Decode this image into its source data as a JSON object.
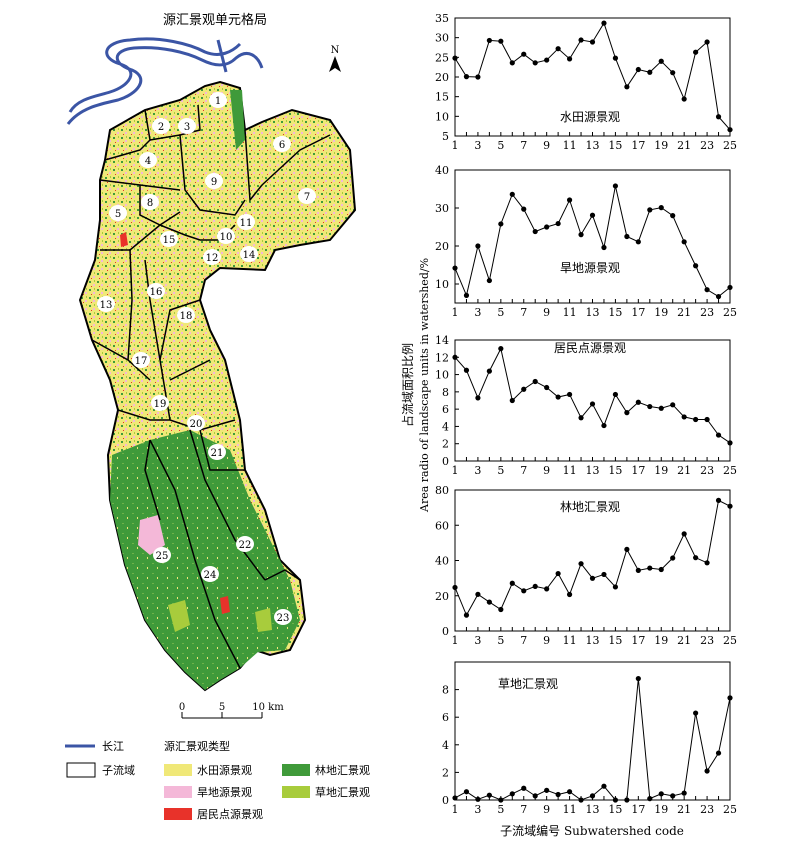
{
  "map": {
    "title": "源汇景观单元格局",
    "north": "N",
    "scale_labels": [
      "0",
      "5",
      "10 km"
    ],
    "subwatershed_ids": [
      "1",
      "2",
      "3",
      "4",
      "5",
      "6",
      "7",
      "8",
      "9",
      "10",
      "11",
      "12",
      "13",
      "14",
      "15",
      "16",
      "17",
      "18",
      "19",
      "20",
      "21",
      "22",
      "23",
      "24",
      "25"
    ]
  },
  "legend": {
    "river_label": "长江",
    "subwatershed_label": "子流域",
    "types_title": "源汇景观类型",
    "items": [
      {
        "label": "水田源景观",
        "color": "#f0e878"
      },
      {
        "label": "林地汇景观",
        "color": "#3f9a3a"
      },
      {
        "label": "旱地源景观",
        "color": "#f4b8d8"
      },
      {
        "label": "草地汇景观",
        "color": "#a8cc3c"
      },
      {
        "label": "居民点源景观",
        "color": "#e8322a"
      }
    ]
  },
  "colors": {
    "river": "#3b55a5",
    "forest": "#3f9a3a",
    "paddy": "#f0e878",
    "dry": "#f4b8d8",
    "grass": "#a8cc3c",
    "settlement": "#e8322a",
    "line": "#000000"
  },
  "chart_data": {
    "type": "line",
    "ylabel_cn": "占流域面积比例",
    "ylabel_en": "Area radio of landscape units in watershed/%",
    "xlabel": "子流域编号 Subwatershed code",
    "x": [
      1,
      2,
      3,
      4,
      5,
      6,
      7,
      8,
      9,
      10,
      11,
      12,
      13,
      14,
      15,
      16,
      17,
      18,
      19,
      20,
      21,
      22,
      23,
      24,
      25
    ],
    "x_ticks": [
      1,
      3,
      5,
      7,
      9,
      11,
      13,
      15,
      17,
      19,
      21,
      23,
      25
    ],
    "panels": [
      {
        "name": "水田源景观",
        "ylim": [
          5,
          35
        ],
        "yticks": [
          5,
          10,
          15,
          20,
          25,
          30,
          35
        ],
        "values": [
          24.8,
          20.1,
          20.0,
          29.3,
          29.1,
          23.6,
          25.8,
          23.6,
          24.3,
          27.2,
          24.6,
          29.4,
          28.9,
          33.7,
          24.8,
          17.5,
          21.9,
          21.2,
          24.0,
          21.1,
          14.4,
          26.3,
          28.9,
          9.9,
          6.6
        ]
      },
      {
        "name": "旱地源景观",
        "ylim": [
          5,
          40
        ],
        "yticks": [
          10,
          20,
          30,
          40
        ],
        "values": [
          14.2,
          7.0,
          20.0,
          10.9,
          25.8,
          33.6,
          29.7,
          23.8,
          25.0,
          25.9,
          32.1,
          23.0,
          28.1,
          19.6,
          35.8,
          22.5,
          21.1,
          29.5,
          30.1,
          28.0,
          21.1,
          14.8,
          8.5,
          6.7,
          9.1
        ]
      },
      {
        "name": "居民点源景观",
        "ylim": [
          0,
          14
        ],
        "yticks": [
          0,
          2,
          4,
          6,
          8,
          10,
          12,
          14
        ],
        "values": [
          12.0,
          10.5,
          7.3,
          10.4,
          13.0,
          7.0,
          8.3,
          9.2,
          8.5,
          7.4,
          7.7,
          5.0,
          6.6,
          4.1,
          7.7,
          5.6,
          6.8,
          6.3,
          6.1,
          6.5,
          5.1,
          4.8,
          4.8,
          3.0,
          2.1
        ]
      },
      {
        "name": "林地汇景观",
        "ylim": [
          0,
          80
        ],
        "yticks": [
          0,
          20,
          40,
          60,
          80
        ],
        "values": [
          24.7,
          9.0,
          20.8,
          16.4,
          12.2,
          27.1,
          22.8,
          25.3,
          23.9,
          32.6,
          20.7,
          38.2,
          29.9,
          32.1,
          25.0,
          46.3,
          34.4,
          35.7,
          34.9,
          41.4,
          55.1,
          41.6,
          38.7,
          74.1,
          70.8
        ]
      },
      {
        "name": "草地汇景观",
        "ylim": [
          0,
          10
        ],
        "yticks": [
          0,
          2,
          4,
          6,
          8
        ],
        "values": [
          0.15,
          0.6,
          0.05,
          0.35,
          0.0,
          0.45,
          0.85,
          0.3,
          0.7,
          0.4,
          0.6,
          0.0,
          0.3,
          1.0,
          0.0,
          0.0,
          8.8,
          0.1,
          0.45,
          0.3,
          0.5,
          6.3,
          2.1,
          3.4,
          7.4
        ]
      }
    ]
  }
}
